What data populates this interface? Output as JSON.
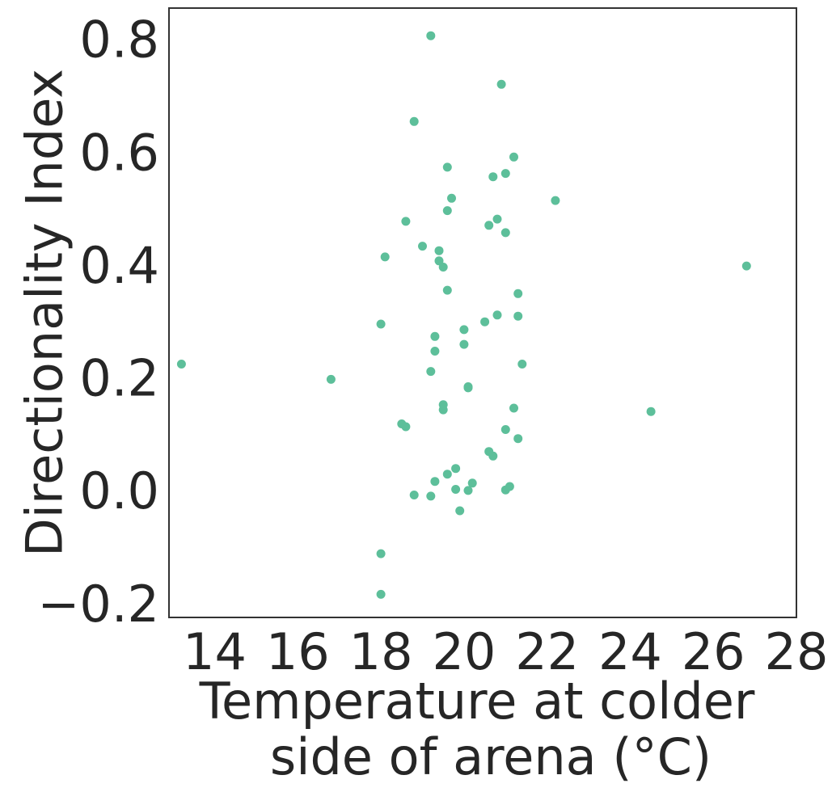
{
  "chart_data": {
    "type": "scatter",
    "xlabel_lines": [
      "Temperature at colder",
      "side of arena (°C)"
    ],
    "ylabel": "Directionality Index",
    "xlim": [
      12.9,
      28.0
    ],
    "ylim": [
      -0.225,
      0.855
    ],
    "x_ticks": [
      14,
      16,
      18,
      20,
      22,
      24,
      26,
      28
    ],
    "y_ticks": [
      -0.2,
      0.0,
      0.2,
      0.4,
      0.6,
      0.8
    ],
    "x_tick_labels": [
      "14",
      "16",
      "18",
      "20",
      "22",
      "24",
      "26",
      "28"
    ],
    "y_tick_labels": [
      "−0.2",
      "0.0",
      "0.2",
      "0.4",
      "0.6",
      "0.8"
    ],
    "grid": false,
    "marker_color": "#5dbf9a",
    "points": [
      {
        "x": 13.2,
        "y": 0.224
      },
      {
        "x": 16.8,
        "y": 0.197
      },
      {
        "x": 18.0,
        "y": 0.295
      },
      {
        "x": 18.1,
        "y": 0.414
      },
      {
        "x": 18.0,
        "y": -0.112
      },
      {
        "x": 18.0,
        "y": -0.184
      },
      {
        "x": 18.5,
        "y": 0.118
      },
      {
        "x": 18.6,
        "y": 0.113
      },
      {
        "x": 18.6,
        "y": 0.477
      },
      {
        "x": 18.8,
        "y": 0.654
      },
      {
        "x": 18.8,
        "y": -0.008
      },
      {
        "x": 19.0,
        "y": 0.433
      },
      {
        "x": 19.2,
        "y": 0.806
      },
      {
        "x": 19.2,
        "y": 0.211
      },
      {
        "x": 19.3,
        "y": 0.247
      },
      {
        "x": 19.3,
        "y": 0.273
      },
      {
        "x": 19.3,
        "y": 0.016
      },
      {
        "x": 19.2,
        "y": -0.01
      },
      {
        "x": 19.4,
        "y": 0.407
      },
      {
        "x": 19.4,
        "y": 0.425
      },
      {
        "x": 19.5,
        "y": 0.396
      },
      {
        "x": 19.5,
        "y": 0.143
      },
      {
        "x": 19.5,
        "y": 0.152
      },
      {
        "x": 19.6,
        "y": 0.355
      },
      {
        "x": 19.6,
        "y": 0.496
      },
      {
        "x": 19.6,
        "y": 0.573
      },
      {
        "x": 19.6,
        "y": 0.029
      },
      {
        "x": 19.7,
        "y": 0.518
      },
      {
        "x": 19.8,
        "y": 0.039
      },
      {
        "x": 19.8,
        "y": 0.002
      },
      {
        "x": 19.9,
        "y": -0.036
      },
      {
        "x": 20.0,
        "y": 0.285
      },
      {
        "x": 20.0,
        "y": 0.259
      },
      {
        "x": 20.1,
        "y": 0.184
      },
      {
        "x": 20.1,
        "y": 0.182
      },
      {
        "x": 20.1,
        "y": 0.0
      },
      {
        "x": 20.2,
        "y": 0.013
      },
      {
        "x": 20.5,
        "y": 0.299
      },
      {
        "x": 20.6,
        "y": 0.47
      },
      {
        "x": 20.6,
        "y": 0.069
      },
      {
        "x": 20.7,
        "y": 0.061
      },
      {
        "x": 20.7,
        "y": 0.556
      },
      {
        "x": 20.8,
        "y": 0.481
      },
      {
        "x": 20.8,
        "y": 0.311
      },
      {
        "x": 20.9,
        "y": 0.72
      },
      {
        "x": 21.0,
        "y": 0.562
      },
      {
        "x": 21.0,
        "y": 0.457
      },
      {
        "x": 21.0,
        "y": 0.108
      },
      {
        "x": 21.0,
        "y": 0.001
      },
      {
        "x": 21.1,
        "y": 0.007
      },
      {
        "x": 21.2,
        "y": 0.591
      },
      {
        "x": 21.2,
        "y": 0.146
      },
      {
        "x": 21.3,
        "y": 0.349
      },
      {
        "x": 21.3,
        "y": 0.309
      },
      {
        "x": 21.3,
        "y": 0.092
      },
      {
        "x": 21.4,
        "y": 0.224
      },
      {
        "x": 22.2,
        "y": 0.514
      },
      {
        "x": 24.5,
        "y": 0.14
      },
      {
        "x": 26.8,
        "y": 0.398
      }
    ]
  }
}
